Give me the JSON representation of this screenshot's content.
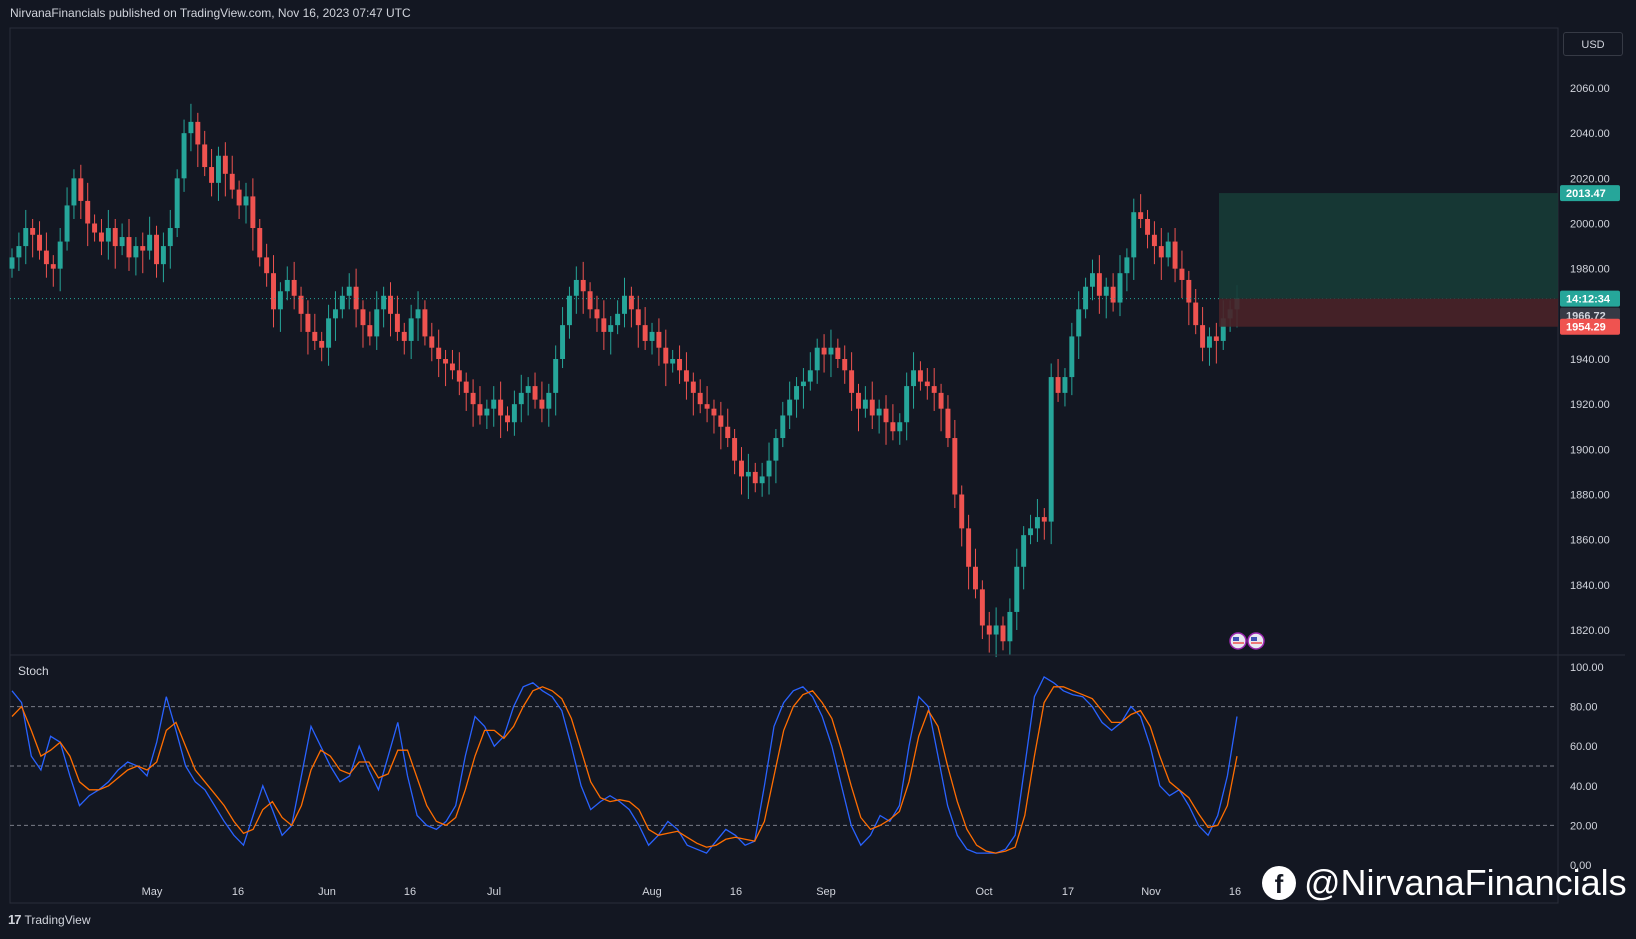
{
  "header": {
    "published": "NirvanaFinancials published on TradingView.com, Nov 16, 2023 07:47 UTC"
  },
  "currency": "USD",
  "footer": {
    "brand": "TradingView",
    "logo_glyph": "17"
  },
  "watermark": {
    "icon_glyph": "f",
    "handle": "@NirvanaFinancials"
  },
  "colors": {
    "background": "#131722",
    "up": "#26a69a",
    "down": "#ef5350",
    "grid": "#2a2e39",
    "k_line": "#2962ff",
    "d_line": "#ff6d00",
    "target_zone": "#173b36",
    "stop_zone": "#4a2228"
  },
  "chart_data": [
    {
      "type": "candlestick",
      "title": "",
      "ylim": [
        1810,
        2075
      ],
      "y_ticks": [
        "2060.00",
        "2040.00",
        "2020.00",
        "2000.00",
        "1980.00",
        "1960.00",
        "1940.00",
        "1920.00",
        "1900.00",
        "1880.00",
        "1860.00",
        "1840.00",
        "1820.00"
      ],
      "x_ticks": [
        "May",
        "16",
        "Jun",
        "16",
        "Jul",
        "Aug",
        "16",
        "Sep",
        "Oct",
        "17",
        "Nov",
        "16"
      ],
      "price_labels": {
        "target": "2013.47",
        "countdown": "14:12:34",
        "current": "1966.72",
        "stop": "1954.29"
      },
      "position": {
        "entry": 1966.72,
        "target": 2013.47,
        "stop": 1954.29
      },
      "close": [
        1985,
        1990,
        1998,
        1995,
        1988,
        1982,
        1980,
        1992,
        2008,
        2020,
        2010,
        2000,
        1996,
        1992,
        1998,
        1990,
        1994,
        1985,
        1990,
        1988,
        1995,
        1982,
        1990,
        1998,
        2020,
        2040,
        2045,
        2035,
        2025,
        2018,
        2030,
        2022,
        2015,
        2008,
        2012,
        1998,
        1985,
        1978,
        1962,
        1970,
        1975,
        1968,
        1960,
        1952,
        1948,
        1945,
        1958,
        1962,
        1968,
        1972,
        1962,
        1955,
        1950,
        1962,
        1968,
        1960,
        1952,
        1948,
        1958,
        1962,
        1950,
        1945,
        1940,
        1938,
        1935,
        1930,
        1925,
        1920,
        1915,
        1918,
        1922,
        1915,
        1912,
        1920,
        1925,
        1928,
        1922,
        1918,
        1925,
        1940,
        1955,
        1968,
        1975,
        1970,
        1962,
        1958,
        1952,
        1955,
        1960,
        1968,
        1962,
        1955,
        1948,
        1952,
        1945,
        1938,
        1940,
        1935,
        1930,
        1925,
        1920,
        1918,
        1915,
        1910,
        1905,
        1895,
        1888,
        1890,
        1885,
        1888,
        1895,
        1905,
        1915,
        1922,
        1928,
        1930,
        1935,
        1945,
        1942,
        1945,
        1940,
        1935,
        1925,
        1918,
        1922,
        1915,
        1918,
        1912,
        1908,
        1912,
        1928,
        1935,
        1930,
        1928,
        1925,
        1918,
        1905,
        1880,
        1865,
        1848,
        1838,
        1822,
        1818,
        1822,
        1815,
        1828,
        1848,
        1862,
        1865,
        1870,
        1868,
        1932,
        1925,
        1932,
        1950,
        1962,
        1972,
        1978,
        1968,
        1972,
        1965,
        1978,
        1985,
        2005,
        2002,
        1995,
        1990,
        1985,
        1992,
        1980,
        1975,
        1965,
        1955,
        1945,
        1950,
        1948,
        1958,
        1962,
        1966.72
      ]
    },
    {
      "type": "line",
      "title": "Stoch",
      "ylim": [
        0,
        100
      ],
      "y_ticks": [
        "100.00",
        "80.00",
        "60.00",
        "40.00",
        "20.00",
        "0.00"
      ],
      "levels": [
        80,
        50,
        20
      ],
      "series": [
        {
          "values": [
            88,
            82,
            55,
            48,
            65,
            62,
            45,
            30,
            35,
            38,
            42,
            48,
            52,
            50,
            45,
            62,
            85,
            68,
            50,
            42,
            38,
            30,
            22,
            15,
            10,
            25,
            40,
            28,
            15,
            20,
            45,
            70,
            60,
            50,
            42,
            45,
            60,
            48,
            38,
            55,
            72,
            45,
            25,
            20,
            18,
            22,
            30,
            55,
            75,
            70,
            60,
            65,
            80,
            90,
            92,
            88,
            85,
            78,
            60,
            40,
            28,
            32,
            35,
            32,
            28,
            20,
            10,
            15,
            22,
            18,
            10,
            8,
            6,
            12,
            18,
            15,
            10,
            12,
            40,
            70,
            82,
            88,
            90,
            85,
            75,
            60,
            40,
            20,
            10,
            15,
            25,
            22,
            30,
            60,
            85,
            80,
            55,
            30,
            15,
            8,
            6,
            6,
            6,
            8,
            15,
            50,
            85,
            95,
            92,
            88,
            86,
            85,
            80,
            72,
            68,
            72,
            80,
            75,
            60,
            40,
            35,
            38,
            30,
            20,
            15,
            25,
            45,
            75
          ]
        },
        {
          "values": [
            75,
            80,
            68,
            55,
            58,
            62,
            55,
            42,
            38,
            38,
            40,
            44,
            48,
            50,
            48,
            52,
            68,
            72,
            60,
            48,
            42,
            36,
            30,
            22,
            16,
            18,
            28,
            32,
            24,
            20,
            30,
            48,
            58,
            55,
            48,
            46,
            52,
            52,
            44,
            46,
            58,
            58,
            44,
            30,
            22,
            20,
            24,
            38,
            55,
            68,
            68,
            64,
            70,
            80,
            88,
            90,
            88,
            84,
            74,
            58,
            42,
            34,
            32,
            33,
            32,
            28,
            18,
            15,
            16,
            17,
            14,
            11,
            9,
            10,
            13,
            14,
            13,
            12,
            22,
            45,
            68,
            80,
            86,
            88,
            82,
            74,
            58,
            40,
            24,
            18,
            20,
            23,
            27,
            42,
            65,
            78,
            70,
            50,
            32,
            18,
            10,
            7,
            6,
            7,
            9,
            25,
            55,
            82,
            90,
            90,
            88,
            86,
            84,
            78,
            72,
            72,
            76,
            78,
            70,
            55,
            42,
            38,
            34,
            26,
            19,
            20,
            30,
            55
          ]
        }
      ]
    }
  ]
}
